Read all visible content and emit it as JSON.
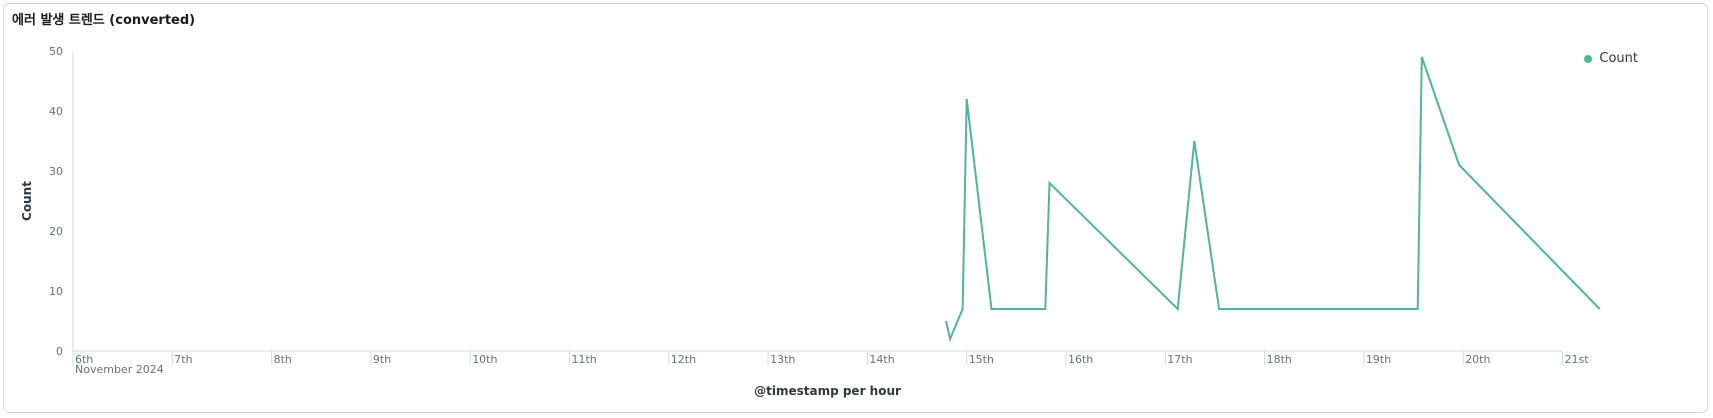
{
  "panel": {
    "title": "에러 발생 트렌드 (converted)"
  },
  "colors": {
    "series": "#54b399",
    "axis": "#d3dae6",
    "text": "#69707d"
  },
  "chart_data": {
    "type": "line",
    "xlabel": "@timestamp per hour",
    "ylabel": "Count",
    "ylim": [
      0,
      50
    ],
    "yticks": [
      0,
      10,
      20,
      30,
      40,
      50
    ],
    "x_date_label": "November 2024",
    "x_ticks": [
      "6th",
      "7th",
      "8th",
      "9th",
      "10th",
      "11th",
      "12th",
      "13th",
      "14th",
      "15th",
      "16th",
      "17th",
      "18th",
      "19th",
      "20th",
      "21st"
    ],
    "xlim_days": [
      6,
      21.45
    ],
    "legend": {
      "position": "top-right",
      "entries": [
        "Count"
      ]
    },
    "series": [
      {
        "name": "Count",
        "points": [
          {
            "x": "2024-11-14 19:00",
            "y": 5
          },
          {
            "x": "2024-11-14 20:00",
            "y": 2
          },
          {
            "x": "2024-11-14 23:00",
            "y": 7
          },
          {
            "x": "2024-11-15 00:00",
            "y": 42
          },
          {
            "x": "2024-11-15 06:00",
            "y": 7
          },
          {
            "x": "2024-11-15 19:00",
            "y": 7
          },
          {
            "x": "2024-11-15 20:00",
            "y": 28
          },
          {
            "x": "2024-11-17 03:00",
            "y": 7
          },
          {
            "x": "2024-11-17 07:00",
            "y": 35
          },
          {
            "x": "2024-11-17 13:00",
            "y": 7
          },
          {
            "x": "2024-11-19 13:00",
            "y": 7
          },
          {
            "x": "2024-11-19 14:00",
            "y": 49
          },
          {
            "x": "2024-11-19 23:00",
            "y": 31
          },
          {
            "x": "2024-11-21 09:00",
            "y": 7
          }
        ]
      }
    ]
  }
}
